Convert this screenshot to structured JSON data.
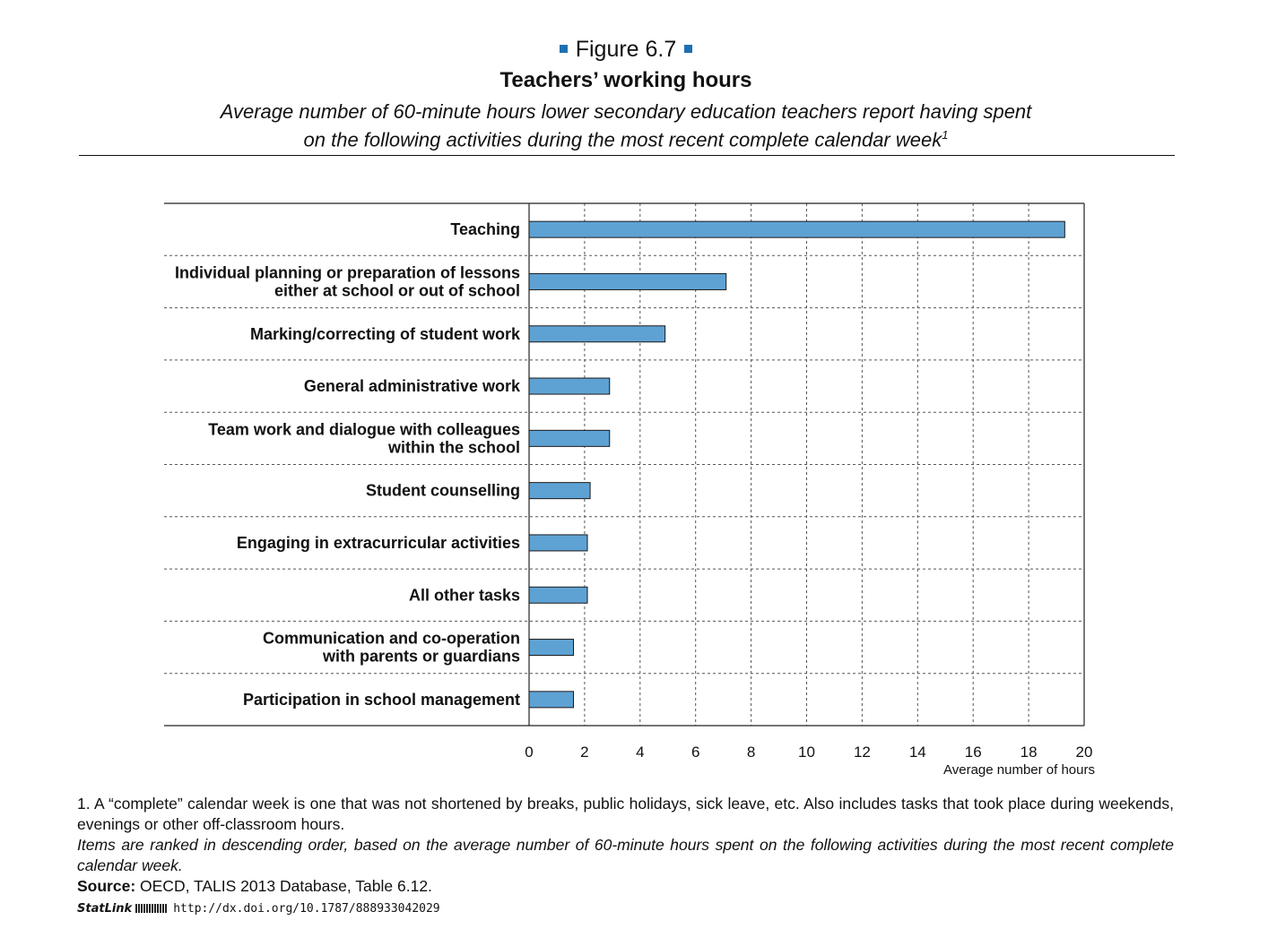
{
  "header": {
    "figure_label": "Figure 6.7",
    "title": "Teachers’ working hours",
    "subtitle_line1": "Average number of 60-minute hours lower secondary education teachers report having spent",
    "subtitle_line2": "on the following activities during the most recent complete calendar week",
    "subtitle_sup": "1"
  },
  "chart_data": {
    "type": "bar",
    "orientation": "horizontal",
    "categories": [
      [
        "Teaching"
      ],
      [
        "Individual planning or preparation of lessons",
        "either at school or out of school"
      ],
      [
        "Marking/correcting of student work"
      ],
      [
        "General administrative work"
      ],
      [
        "Team work and dialogue with colleagues",
        "within the school"
      ],
      [
        "Student counselling"
      ],
      [
        "Engaging in extracurricular activities"
      ],
      [
        "All other tasks"
      ],
      [
        "Communication and co-operation",
        "with parents or guardians"
      ],
      [
        "Participation in school management"
      ]
    ],
    "values": [
      19.3,
      7.1,
      4.9,
      2.9,
      2.9,
      2.2,
      2.1,
      2.1,
      1.6,
      1.6
    ],
    "xlim": [
      0,
      20
    ],
    "xticks": [
      "0",
      "2",
      "4",
      "6",
      "8",
      "10",
      "12",
      "14",
      "16",
      "18",
      "20"
    ],
    "xlabel": "Average number of hours",
    "bar_color": "#5ea2d4",
    "grid": true
  },
  "notes": {
    "footnote": "1. A “complete” calendar week is one that was not shortened by breaks, public holidays, sick leave, etc. Also includes tasks that took place during weekends, evenings or other off-classroom hours.",
    "ranking": "Items are ranked in descending order, based on the average number of 60-minute hours spent on the following activities during the most recent complete calendar week.",
    "source_label": "Source:",
    "source_text": " OECD, TALIS 2013 Database, Table 6.12."
  },
  "statlink": {
    "brand": "StatLink",
    "url": "http://dx.doi.org/10.1787/888933042029"
  }
}
